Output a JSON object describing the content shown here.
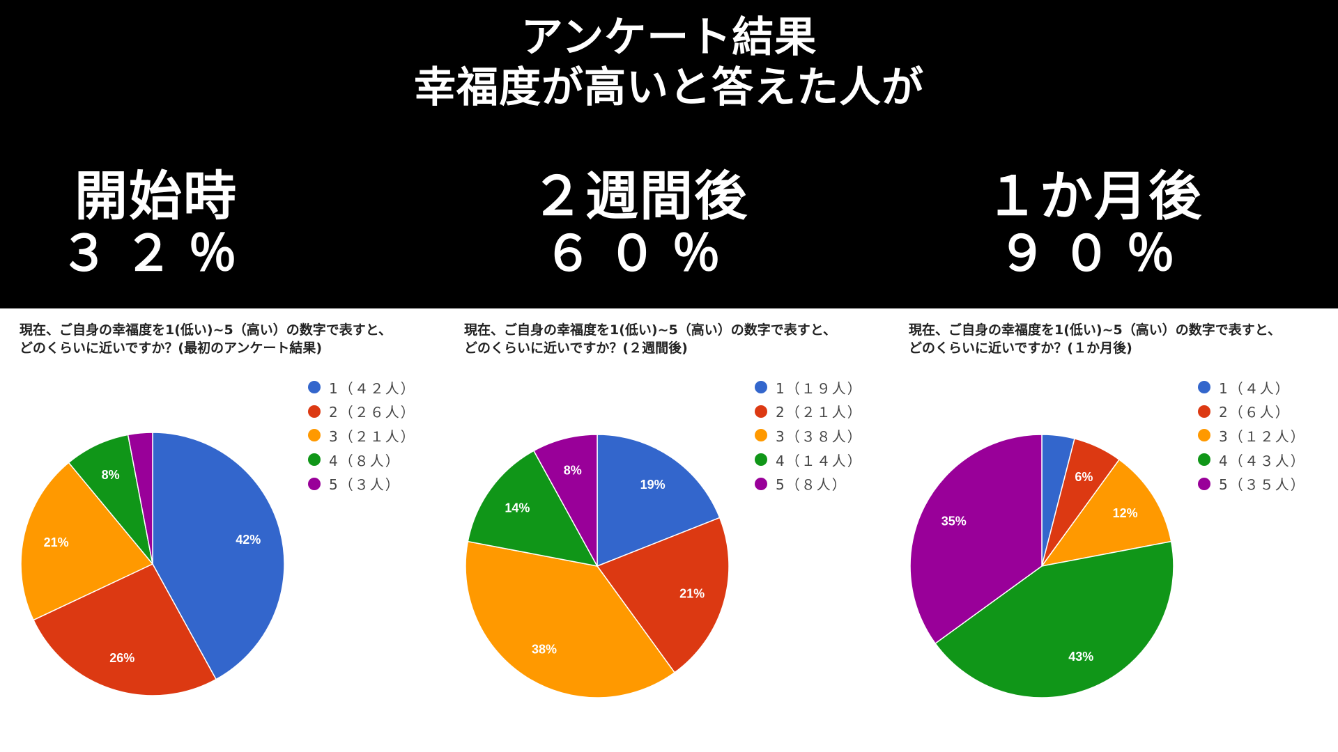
{
  "header": {
    "title_line1": "アンケート結果",
    "title_line2": "幸福度が高いと答えた人が",
    "stages": [
      {
        "label": "開始時",
        "percent": "３２％"
      },
      {
        "label": "２週間後",
        "percent": "６０％"
      },
      {
        "label": "１か月後",
        "percent": "９０％"
      }
    ]
  },
  "colors": {
    "header_bg": "#000000",
    "page_bg": "#ffffff",
    "series": [
      "#3366CC",
      "#DC3912",
      "#FF9900",
      "#109618",
      "#990099"
    ]
  },
  "panels": [
    {
      "title_line1": "現在、ご自身の幸福度を1(低い)~5（高い）の数字で表すと、",
      "title_line2": "どのくらいに近いですか？(最初のアンケート結果)",
      "legend": [
        "1（４２人）",
        "2（２６人）",
        "3（２１人）",
        "4（８人）",
        "5（３人）"
      ]
    },
    {
      "title_line1": "現在、ご自身の幸福度を1(低い)~5（高い）の数字で表すと、",
      "title_line2": "どのくらいに近いですか？(２週間後)",
      "legend": [
        "1（１９人）",
        "2（２１人）",
        "3（３８人）",
        "4（１４人）",
        "5（８人）"
      ]
    },
    {
      "title_line1": "現在、ご自身の幸福度を1(低い)~5（高い）の数字で表すと、",
      "title_line2": "どのくらいに近いですか？(１か月後)",
      "legend": [
        "1（４人）",
        "2（６人）",
        "3（１２人）",
        "4（４３人）",
        "5（３５人）"
      ]
    }
  ],
  "chart_data": [
    {
      "type": "pie",
      "title": "現在、ご自身の幸福度を1(低い)~5（高い）の数字で表すと、どのくらいに近いですか？(最初のアンケート結果)",
      "categories": [
        "1",
        "2",
        "3",
        "4",
        "5"
      ],
      "values": [
        42,
        26,
        21,
        8,
        3
      ],
      "labels": [
        "42%",
        "26%",
        "21%",
        "8%",
        ""
      ],
      "legend_entries": [
        "1（４２人）",
        "2（２６人）",
        "3（２１人）",
        "4（８人）",
        "5（３人）"
      ],
      "legend_position": "right",
      "start_angle": "12 o'clock, clockwise"
    },
    {
      "type": "pie",
      "title": "現在、ご自身の幸福度を1(低い)~5（高い）の数字で表すと、どのくらいに近いですか？(２週間後)",
      "categories": [
        "1",
        "2",
        "3",
        "4",
        "5"
      ],
      "values": [
        19,
        21,
        38,
        14,
        8
      ],
      "labels": [
        "19%",
        "21%",
        "38%",
        "14%",
        "8%"
      ],
      "legend_entries": [
        "1（１９人）",
        "2（２１人）",
        "3（３８人）",
        "4（１４人）",
        "5（８人）"
      ],
      "legend_position": "right",
      "start_angle": "12 o'clock, clockwise"
    },
    {
      "type": "pie",
      "title": "現在、ご自身の幸福度を1(低い)~5（高い）の数字で表すと、どのくらいに近いですか？(１か月後)",
      "categories": [
        "1",
        "2",
        "3",
        "4",
        "5"
      ],
      "values": [
        4,
        6,
        12,
        43,
        35
      ],
      "labels": [
        "",
        "6%",
        "12%",
        "43%",
        "35%"
      ],
      "legend_entries": [
        "1（４人）",
        "2（６人）",
        "3（１２人）",
        "4（４３人）",
        "5（３５人）"
      ],
      "legend_position": "right",
      "start_angle": "12 o'clock, clockwise"
    }
  ]
}
